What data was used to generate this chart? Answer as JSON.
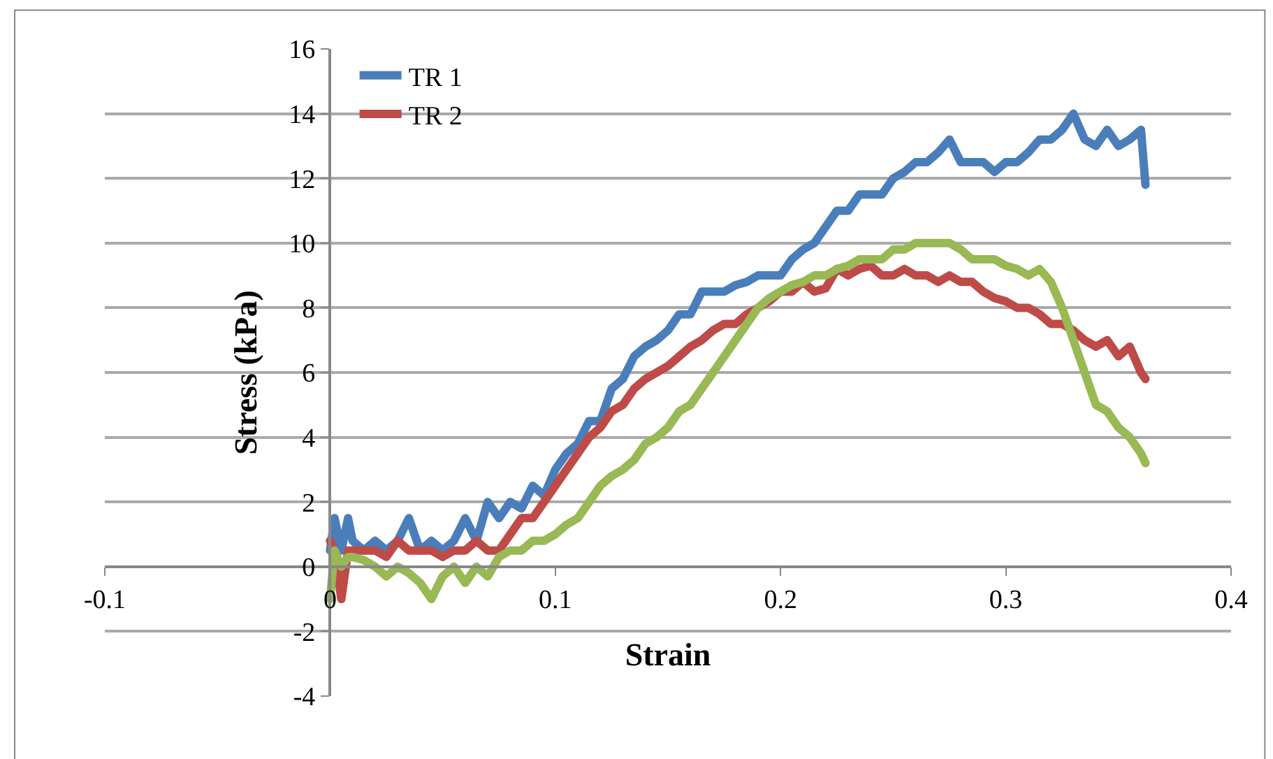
{
  "chart_data": {
    "type": "line",
    "xlabel": "Strain",
    "ylabel": "Stress (kPa)",
    "xlim": [
      -0.1,
      0.4
    ],
    "xticks": [
      -0.1,
      0,
      0.1,
      0.2,
      0.3,
      0.4
    ],
    "ylim": [
      -4,
      16
    ],
    "yticks": [
      -4,
      -2,
      0,
      2,
      4,
      6,
      8,
      10,
      12,
      14,
      16
    ],
    "grid": "y",
    "legend": "top left",
    "line_style": "solid",
    "marker": "none",
    "series": [
      {
        "name": "TR 1",
        "color": "#4a7ebb",
        "x": [
          0,
          0.002,
          0.005,
          0.008,
          0.01,
          0.015,
          0.02,
          0.025,
          0.03,
          0.035,
          0.04,
          0.045,
          0.05,
          0.055,
          0.06,
          0.065,
          0.07,
          0.075,
          0.08,
          0.085,
          0.09,
          0.095,
          0.1,
          0.105,
          0.11,
          0.115,
          0.12,
          0.125,
          0.13,
          0.135,
          0.14,
          0.145,
          0.15,
          0.155,
          0.16,
          0.165,
          0.17,
          0.175,
          0.18,
          0.185,
          0.19,
          0.195,
          0.2,
          0.205,
          0.21,
          0.215,
          0.22,
          0.225,
          0.23,
          0.235,
          0.24,
          0.245,
          0.25,
          0.255,
          0.26,
          0.265,
          0.27,
          0.275,
          0.28,
          0.285,
          0.29,
          0.295,
          0.3,
          0.305,
          0.31,
          0.315,
          0.32,
          0.325,
          0.33,
          0.335,
          0.34,
          0.345,
          0.35,
          0.355,
          0.36,
          0.362
        ],
        "values": [
          0.5,
          1.5,
          0.5,
          1.5,
          0.8,
          0.5,
          0.8,
          0.5,
          0.8,
          1.5,
          0.5,
          0.8,
          0.5,
          0.8,
          1.5,
          0.8,
          2,
          1.5,
          2,
          1.8,
          2.5,
          2.2,
          3,
          3.5,
          3.8,
          4.5,
          4.5,
          5.5,
          5.8,
          6.5,
          6.8,
          7,
          7.3,
          7.8,
          7.8,
          8.5,
          8.5,
          8.5,
          8.7,
          8.8,
          9,
          9,
          9,
          9.5,
          9.8,
          10,
          10.5,
          11,
          11,
          11.5,
          11.5,
          11.5,
          12,
          12.2,
          12.5,
          12.5,
          12.8,
          13.2,
          12.5,
          12.5,
          12.5,
          12.2,
          12.5,
          12.5,
          12.8,
          13.2,
          13.2,
          13.5,
          14,
          13.2,
          13,
          13.5,
          13,
          13.2,
          13.5,
          11.8
        ]
      },
      {
        "name": "TR 2",
        "color": "#be4b48",
        "x": [
          0,
          0.002,
          0.005,
          0.008,
          0.01,
          0.015,
          0.02,
          0.025,
          0.03,
          0.035,
          0.04,
          0.045,
          0.05,
          0.055,
          0.06,
          0.065,
          0.07,
          0.075,
          0.08,
          0.085,
          0.09,
          0.095,
          0.1,
          0.105,
          0.11,
          0.115,
          0.12,
          0.125,
          0.13,
          0.135,
          0.14,
          0.145,
          0.15,
          0.155,
          0.16,
          0.165,
          0.17,
          0.175,
          0.18,
          0.185,
          0.19,
          0.195,
          0.2,
          0.205,
          0.21,
          0.215,
          0.22,
          0.225,
          0.23,
          0.235,
          0.24,
          0.245,
          0.25,
          0.255,
          0.26,
          0.265,
          0.27,
          0.275,
          0.28,
          0.285,
          0.29,
          0.295,
          0.3,
          0.305,
          0.31,
          0.315,
          0.32,
          0.325,
          0.33,
          0.335,
          0.34,
          0.345,
          0.35,
          0.355,
          0.36,
          0.362
        ],
        "values": [
          0.8,
          0.5,
          -1,
          0.5,
          0.5,
          0.5,
          0.5,
          0.3,
          0.8,
          0.5,
          0.5,
          0.5,
          0.3,
          0.5,
          0.5,
          0.8,
          0.5,
          0.5,
          1,
          1.5,
          1.5,
          2,
          2.5,
          3,
          3.5,
          4,
          4.3,
          4.8,
          5,
          5.5,
          5.8,
          6,
          6.2,
          6.5,
          6.8,
          7,
          7.3,
          7.5,
          7.5,
          7.8,
          8,
          8.2,
          8.5,
          8.5,
          8.8,
          8.5,
          8.6,
          9.2,
          9,
          9.2,
          9.3,
          9,
          9,
          9.2,
          9,
          9,
          8.8,
          9,
          8.8,
          8.8,
          8.5,
          8.3,
          8.2,
          8,
          8,
          7.8,
          7.5,
          7.5,
          7.3,
          7,
          6.8,
          7,
          6.5,
          6.8,
          6,
          5.8
        ]
      },
      {
        "color": "#98b954",
        "x": [
          0,
          0.002,
          0.005,
          0.008,
          0.01,
          0.015,
          0.02,
          0.025,
          0.03,
          0.035,
          0.04,
          0.045,
          0.05,
          0.055,
          0.06,
          0.065,
          0.07,
          0.075,
          0.08,
          0.085,
          0.09,
          0.095,
          0.1,
          0.105,
          0.11,
          0.115,
          0.12,
          0.125,
          0.13,
          0.135,
          0.14,
          0.145,
          0.15,
          0.155,
          0.16,
          0.165,
          0.17,
          0.175,
          0.18,
          0.185,
          0.19,
          0.195,
          0.2,
          0.205,
          0.21,
          0.215,
          0.22,
          0.225,
          0.23,
          0.235,
          0.24,
          0.245,
          0.25,
          0.255,
          0.26,
          0.265,
          0.27,
          0.275,
          0.28,
          0.285,
          0.29,
          0.295,
          0.3,
          0.305,
          0.31,
          0.315,
          0.32,
          0.325,
          0.33,
          0.335,
          0.34,
          0.345,
          0.35,
          0.355,
          0.36,
          0.362
        ],
        "values": [
          -1,
          0.5,
          0,
          0.3,
          0.3,
          0.2,
          0,
          -0.3,
          0,
          -0.2,
          -0.5,
          -1,
          -0.3,
          0,
          -0.5,
          0,
          -0.3,
          0.3,
          0.5,
          0.5,
          0.8,
          0.8,
          1,
          1.3,
          1.5,
          2,
          2.5,
          2.8,
          3,
          3.3,
          3.8,
          4,
          4.3,
          4.8,
          5,
          5.5,
          6,
          6.5,
          7,
          7.5,
          8,
          8.3,
          8.5,
          8.7,
          8.8,
          9,
          9,
          9.2,
          9.3,
          9.5,
          9.5,
          9.5,
          9.8,
          9.8,
          10,
          10,
          10,
          10,
          9.8,
          9.5,
          9.5,
          9.5,
          9.3,
          9.2,
          9,
          9.2,
          8.8,
          8,
          7,
          6,
          5,
          4.8,
          4.3,
          4,
          3.5,
          3.2
        ]
      }
    ]
  }
}
